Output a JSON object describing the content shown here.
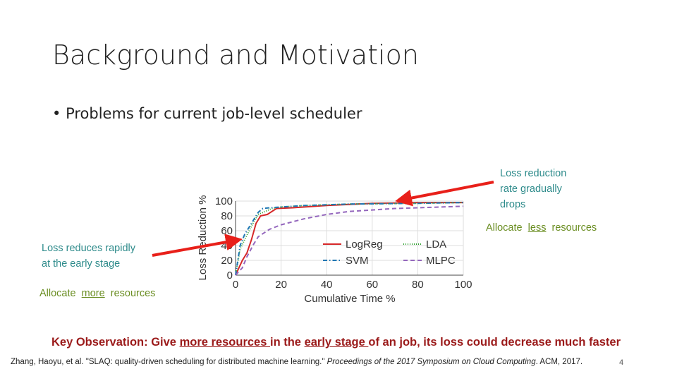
{
  "slide": {
    "title": "Background and Motivation",
    "bullet": "Problems for current job-level scheduler",
    "annot_right_line1": "Loss  reduction",
    "annot_right_line2": "rate  gradually",
    "annot_right_line3": "drops",
    "annot_right_alloc_pre": "Allocate  ",
    "annot_right_alloc_u": "less",
    "annot_right_alloc_post": "  resources",
    "annot_left_line1": "Loss  reduces  rapidly",
    "annot_left_line2": "at  the  early  stage",
    "annot_left_alloc_pre": "Allocate  ",
    "annot_left_alloc_u": "more",
    "annot_left_alloc_post": "  resources",
    "key_part1": "Key  Observation:  Give ",
    "key_u1": "more resources ",
    "key_part2": "in the  ",
    "key_u2": "early stage  ",
    "key_part3": "of  an  job, its loss could decrease much faster",
    "citation_plain": "Zhang, Haoyu, et al. \"SLAQ: quality-driven scheduling for distributed machine learning.\" ",
    "citation_italic": "Proceedings of the 2017 Symposium on Cloud Computing",
    "citation_end": ". ACM, 2017.",
    "page_number": "4",
    "colors": {
      "teal": "#2e8b8b",
      "olive": "#6b8e23",
      "arrow": "#e8201a",
      "keytext": "#9b1b1b"
    }
  },
  "chart_data": {
    "type": "line",
    "xlabel": "Cumulative Time %",
    "ylabel": "Loss Reduction %",
    "xlim": [
      0,
      100
    ],
    "ylim": [
      0,
      100
    ],
    "xticks": [
      "0",
      "20",
      "40",
      "60",
      "80",
      "100"
    ],
    "yticks": [
      "0",
      "20",
      "40",
      "60",
      "80",
      "100"
    ],
    "grid": true,
    "legend_position": "bottom-right",
    "series": [
      {
        "name": "LogReg",
        "color": "#d62728",
        "dash": "",
        "x": [
          0,
          3,
          5,
          7,
          9,
          11,
          14,
          18,
          25,
          40,
          60,
          80,
          100
        ],
        "y": [
          0,
          20,
          30,
          48,
          70,
          80,
          82,
          90,
          91,
          94,
          97,
          98,
          98
        ]
      },
      {
        "name": "LDA",
        "color": "#2ca02c",
        "dash": "1,2",
        "x": [
          0,
          2,
          4,
          6,
          8,
          10,
          13,
          16,
          20,
          30,
          50,
          80,
          100
        ],
        "y": [
          0,
          35,
          48,
          60,
          72,
          82,
          86,
          90,
          92,
          94,
          96,
          97,
          98
        ]
      },
      {
        "name": "SVM",
        "color": "#1f77b4",
        "dash": "6,3,1.5,3",
        "x": [
          0,
          2,
          4,
          6,
          8,
          10,
          12,
          15,
          20,
          30,
          50,
          80,
          100
        ],
        "y": [
          0,
          40,
          55,
          65,
          75,
          85,
          90,
          91,
          92,
          94,
          96,
          97,
          98
        ]
      },
      {
        "name": "MLPC",
        "color": "#9467bd",
        "dash": "6,4",
        "x": [
          0,
          3,
          5,
          8,
          10,
          15,
          20,
          30,
          40,
          50,
          60,
          70,
          80,
          100
        ],
        "y": [
          0,
          10,
          25,
          42,
          52,
          62,
          68,
          76,
          82,
          86,
          88,
          90,
          91,
          93
        ]
      }
    ]
  }
}
